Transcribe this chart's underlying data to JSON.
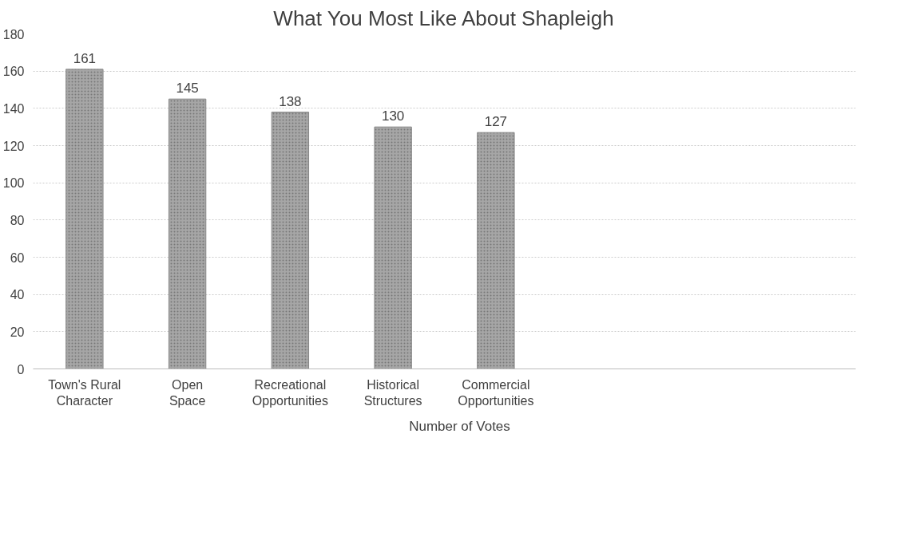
{
  "chart_data": {
    "type": "bar",
    "title": "What You Most Like About Shapleigh",
    "categories": [
      "Town's Rural Character",
      "Open Space",
      "Recreational Opportunities",
      "Historical Structures",
      "Commercial Opportunities",
      null,
      null,
      null
    ],
    "series": [
      {
        "name": "Number of Votes",
        "color": "#a6a6a6",
        "values": [
          161,
          145,
          138,
          130,
          127,
          null,
          null,
          null
        ]
      }
    ],
    "ylim": [
      0,
      180
    ],
    "yticks": [
      0,
      20,
      40,
      60,
      80,
      100,
      120,
      140,
      160,
      180
    ],
    "grid": "y",
    "legend": "bottom",
    "data_labels": true
  }
}
